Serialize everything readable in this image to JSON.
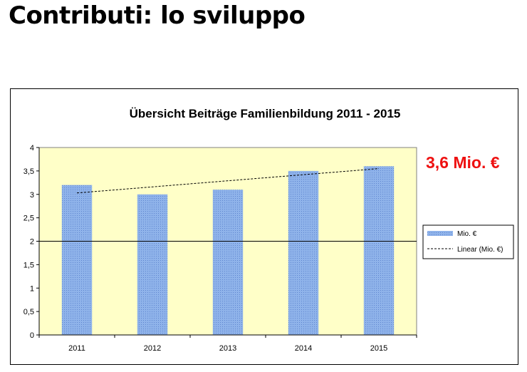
{
  "slide": {
    "title": "Contributi: lo sviluppo"
  },
  "colors": {
    "plot_background": "#ffffc8",
    "bar_fill": "#8fb3ea",
    "bar_dot": "#5f86cf",
    "callout": "#ee1111",
    "axis": "#000000"
  },
  "chart_data": {
    "type": "bar",
    "title": "Übersicht Beiträge Familienbildung 2011 - 2015",
    "categories": [
      "2011",
      "2012",
      "2013",
      "2014",
      "2015"
    ],
    "series": [
      {
        "name": "Mio. €",
        "values": [
          3.2,
          3.0,
          3.1,
          3.5,
          3.6
        ]
      }
    ],
    "trendline": {
      "name": "Linear (Mio. €)",
      "type": "linear",
      "start": 3.03,
      "end": 3.55
    },
    "reference_line": 2,
    "ylim": [
      0,
      4
    ],
    "yticks": [
      "0",
      "0,5",
      "1",
      "1,5",
      "2",
      "2,5",
      "3",
      "3,5",
      "4"
    ],
    "xlabel": "",
    "ylabel": "",
    "grid": false,
    "legend_position": "right",
    "annotation": "3,6 Mio. €"
  }
}
